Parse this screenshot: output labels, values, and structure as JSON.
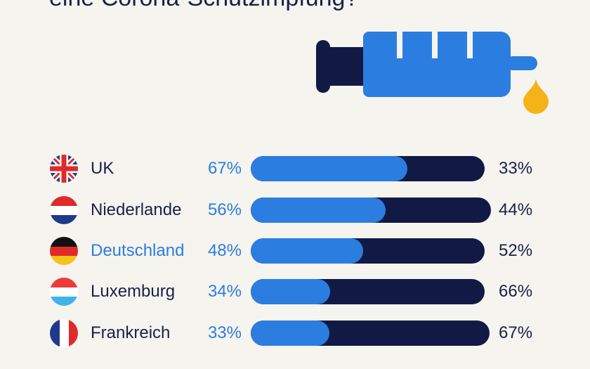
{
  "title": "eine Corona-Schutzimpfung?",
  "colors": {
    "yes": "#2b7de0",
    "no": "#111a45",
    "drop": "#f7b21a",
    "background": "#f5f4ee"
  },
  "icons": {
    "illustration": "syringe-icon"
  },
  "chart_data": {
    "type": "bar",
    "stacked": true,
    "orientation": "horizontal",
    "title": "eine Corona-Schutzimpfung?",
    "categories": [
      "UK",
      "Niederlande",
      "Deutschland",
      "Luxemburg",
      "Frankreich"
    ],
    "highlighted_category": "Deutschland",
    "series": [
      {
        "values": [
          67,
          56,
          48,
          34,
          33
        ],
        "labels": [
          "67%",
          "56%",
          "48%",
          "34%",
          "33%"
        ],
        "color": "#2b7de0"
      },
      {
        "values": [
          33,
          44,
          52,
          66,
          67
        ],
        "labels": [
          "33%",
          "44%",
          "52%",
          "66%",
          "67%"
        ],
        "color": "#111a45"
      }
    ],
    "xlim": [
      0,
      100
    ],
    "grid": false,
    "legend": false
  },
  "flags": [
    "uk-flag-icon",
    "netherlands-flag-icon",
    "germany-flag-icon",
    "luxembourg-flag-icon",
    "france-flag-icon"
  ]
}
